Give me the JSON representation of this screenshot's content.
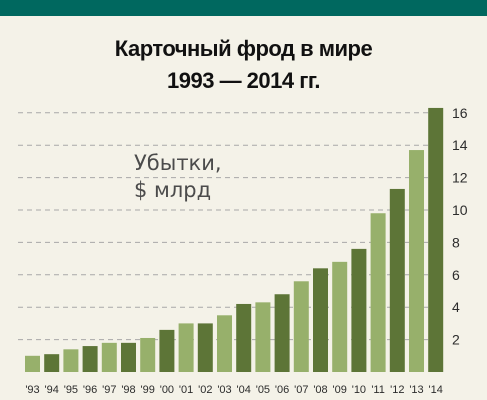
{
  "title": {
    "line1": "Карточный фрод в мире",
    "line2": "1993 — 2014 гг."
  },
  "units": {
    "line1": "Убытки,",
    "line2": "$ млрд"
  },
  "colors": {
    "header_band": "#00685f",
    "background": "#f4f2e8",
    "bar_dark": "#5d7537",
    "bar_light": "#97b06b",
    "grid": "#a8a8a8"
  },
  "chart_data": {
    "type": "bar",
    "title": "Карточный фрод в мире 1993 — 2014 гг.",
    "ylabel": "Убытки, $ млрд",
    "xlabel": "",
    "categories": [
      "'93",
      "'94",
      "'95",
      "'96",
      "'97",
      "'98",
      "'99",
      "'00",
      "'01",
      "'02",
      "'03",
      "'04",
      "'05",
      "'06",
      "'07",
      "'08",
      "'09",
      "'10",
      "'11",
      "'12",
      "'13",
      "'14"
    ],
    "values": [
      1.0,
      1.1,
      1.4,
      1.6,
      1.8,
      1.8,
      2.1,
      2.6,
      3.0,
      3.0,
      3.5,
      4.2,
      4.3,
      4.8,
      5.6,
      6.4,
      6.8,
      7.6,
      9.8,
      11.3,
      13.7,
      16.3
    ],
    "bar_tones": [
      "light",
      "dark",
      "light",
      "dark",
      "light",
      "dark",
      "light",
      "dark",
      "light",
      "dark",
      "light",
      "dark",
      "light",
      "dark",
      "light",
      "dark",
      "light",
      "dark",
      "light",
      "dark",
      "light",
      "dark"
    ],
    "yticks": [
      2,
      4,
      6,
      8,
      10,
      12,
      14,
      16
    ],
    "ylim": [
      0,
      16.5
    ],
    "y_axis_side": "right",
    "grid": "dashed horizontal"
  }
}
